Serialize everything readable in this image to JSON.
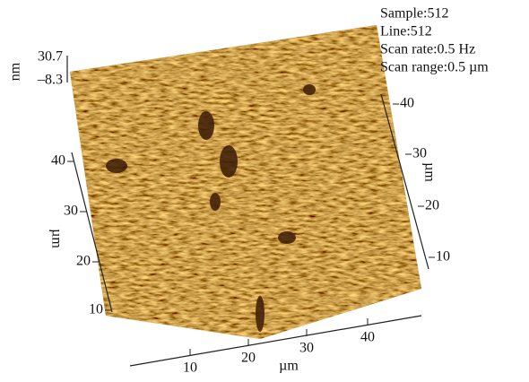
{
  "info": [
    "Sample:512",
    "Line:512",
    "Scan rate:0.5 Hz",
    "Scan range:0.5 µm"
  ],
  "z_axis": {
    "unit": "nm",
    "max": "30.7",
    "min": "–8.3"
  },
  "left_axis": {
    "unit": "µm",
    "ticks": [
      "10",
      "20",
      "30",
      "40"
    ]
  },
  "right_axis": {
    "unit": "µm",
    "ticks": [
      "10",
      "20",
      "30",
      "40"
    ]
  },
  "bottom_axis": {
    "unit": "µm",
    "ticks": [
      "10",
      "20",
      "30",
      "40"
    ]
  }
}
